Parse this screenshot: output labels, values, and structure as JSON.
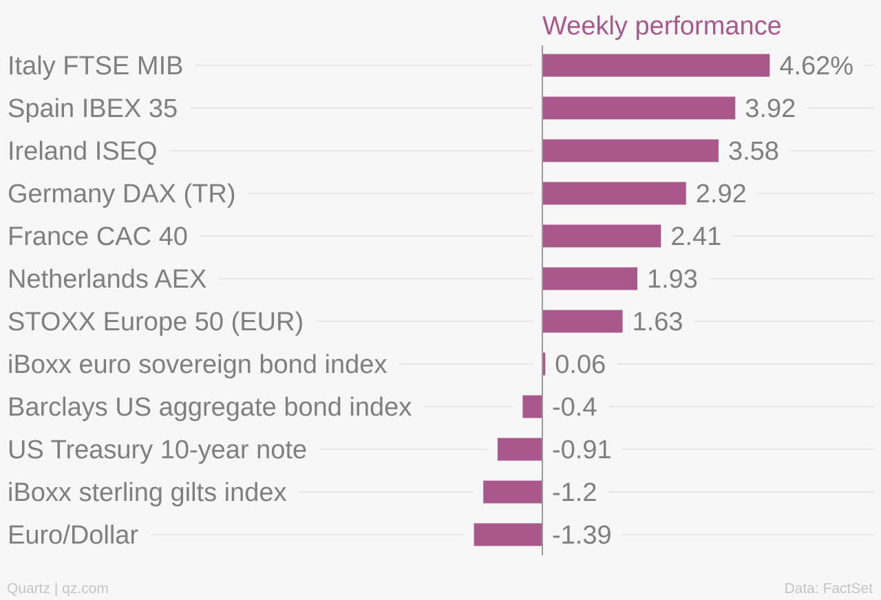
{
  "chart_data": {
    "type": "bar",
    "orientation": "horizontal",
    "title": "Weekly performance",
    "categories": [
      "Italy FTSE MIB",
      "Spain IBEX 35",
      "Ireland ISEQ",
      "Germany DAX (TR)",
      "France CAC 40",
      "Netherlands AEX",
      "STOXX Europe 50 (EUR)",
      "iBoxx euro sovereign bond index",
      "Barclays US aggregate bond index",
      "US Treasury 10-year note",
      "iBoxx sterling gilts index",
      "Euro/Dollar"
    ],
    "values": [
      4.62,
      3.92,
      3.58,
      2.92,
      2.41,
      1.93,
      1.63,
      0.06,
      -0.4,
      -0.91,
      -1.2,
      -1.39
    ],
    "value_labels": [
      "4.62%",
      "3.92",
      "3.58",
      "2.92",
      "2.41",
      "1.93",
      "1.63",
      "0.06",
      "-0.4",
      "-0.91",
      "-1.2",
      "-1.39"
    ],
    "xlim": [
      -1.39,
      4.62
    ],
    "bar_color": "#a8588a",
    "title_color": "#a8588a",
    "grid": true
  },
  "footer": {
    "credit": "Quartz | qz.com",
    "source": "Data: FactSet"
  }
}
